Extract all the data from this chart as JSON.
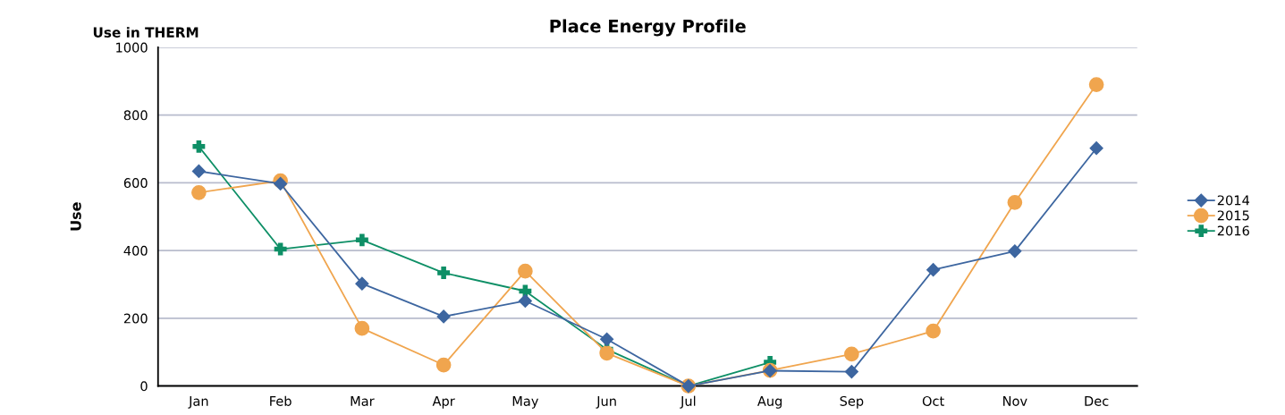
{
  "chart_data": {
    "type": "line",
    "title": "Place Energy Profile",
    "ylabel": "Use",
    "annotations": [
      "Use in THERM"
    ],
    "categories": [
      "Jan",
      "Feb",
      "Mar",
      "Apr",
      "May",
      "Jun",
      "Jul",
      "Aug",
      "Sep",
      "Oct",
      "Nov",
      "Dec"
    ],
    "series": [
      {
        "name": "2014",
        "color": "#3d66a0",
        "marker": "diamond",
        "values": [
          634,
          597,
          302,
          205,
          251,
          138,
          0,
          45,
          42,
          343,
          398,
          702
        ]
      },
      {
        "name": "2015",
        "color": "#f0a54e",
        "marker": "circle",
        "values": [
          571,
          606,
          170,
          62,
          339,
          97,
          0,
          46,
          94,
          162,
          542,
          890
        ]
      },
      {
        "name": "2016",
        "color": "#0e8f66",
        "marker": "cross",
        "values": [
          707,
          404,
          431,
          334,
          280,
          108,
          0,
          70,
          null,
          null,
          null,
          null
        ]
      }
    ],
    "ylim": [
      0,
      1000
    ],
    "yticks": [
      0,
      200,
      400,
      600,
      800,
      1000
    ],
    "grid": "y",
    "legend": "right",
    "line_style": "solid"
  }
}
